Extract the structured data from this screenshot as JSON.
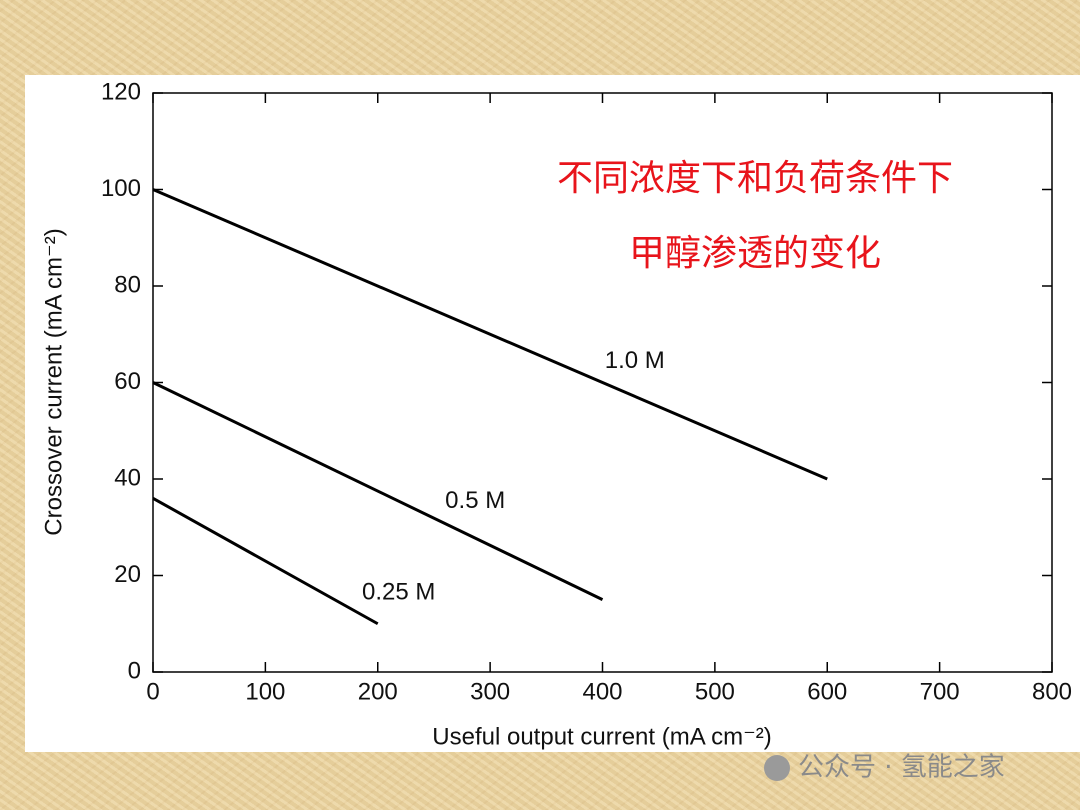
{
  "chart_data": {
    "type": "line",
    "annotation": [
      "不同浓度下和负荷条件下",
      "甲醇渗透的变化"
    ],
    "x_label": "Useful output current (mA cm⁻²)",
    "y_label": "Crossover current (mA cm⁻²)",
    "series": [
      {
        "name": "1.0 M",
        "color": "#000000",
        "x": [
          0,
          600
        ],
        "values": [
          100,
          40
        ]
      },
      {
        "name": "0.5 M",
        "color": "#000000",
        "x": [
          0,
          400
        ],
        "values": [
          60,
          15
        ]
      },
      {
        "name": "0.25 M",
        "color": "#000000",
        "x": [
          0,
          200
        ],
        "values": [
          36,
          10
        ]
      }
    ],
    "xlim": [
      0,
      800
    ],
    "xticks": [
      0,
      100,
      200,
      300,
      400,
      500,
      600,
      700,
      800
    ],
    "ylim": [
      0,
      120
    ],
    "yticks": [
      0,
      20,
      40,
      60,
      80,
      100,
      120
    ],
    "grid": false
  },
  "watermark": "公众号 · 氢能之家"
}
